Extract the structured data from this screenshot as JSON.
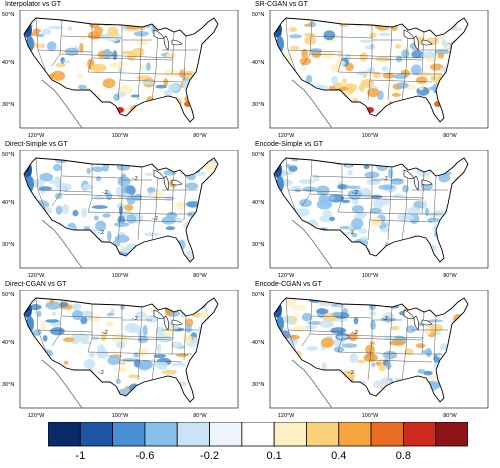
{
  "panels": [
    {
      "title": "Interpolator vs GT",
      "bias": "warm",
      "contour_labels": []
    },
    {
      "title": "SR-CGAN vs GT",
      "bias": "warm",
      "contour_labels": []
    },
    {
      "title": "Direct-Simple vs GT",
      "bias": "cool",
      "contour_labels": [
        "-.2",
        "-.2",
        "-.2",
        "-.2"
      ]
    },
    {
      "title": "Encode-Simple vs GT",
      "bias": "cool",
      "contour_labels": [
        "-.2",
        "-.2",
        "-.2"
      ]
    },
    {
      "title": "Direct-CGAN vs GT",
      "bias": "mixed",
      "contour_labels": [
        "-.2",
        "-.2",
        "-.2"
      ]
    },
    {
      "title": "Encode-CGAN vs GT",
      "bias": "mixed",
      "contour_labels": [
        "-.2",
        "-.2",
        "-.2"
      ]
    }
  ],
  "axes": {
    "lat_labels": [
      "50°N",
      "40°N",
      "30°N"
    ],
    "lon_labels": [
      "120°W",
      "100°W",
      "80°W"
    ]
  },
  "colorbar": {
    "labels": [
      "-1",
      "-0.6",
      "-0.2",
      "0.1",
      "0.4",
      "0.8"
    ],
    "colors": [
      "#0b2a6a",
      "#1f56a4",
      "#4a8fd3",
      "#88bfea",
      "#c9e4f6",
      "#eef5fb",
      "#ffffff",
      "#fdf0c2",
      "#fbd27c",
      "#f6a43d",
      "#ea6b22",
      "#cf2a1e",
      "#8c1416"
    ]
  }
}
